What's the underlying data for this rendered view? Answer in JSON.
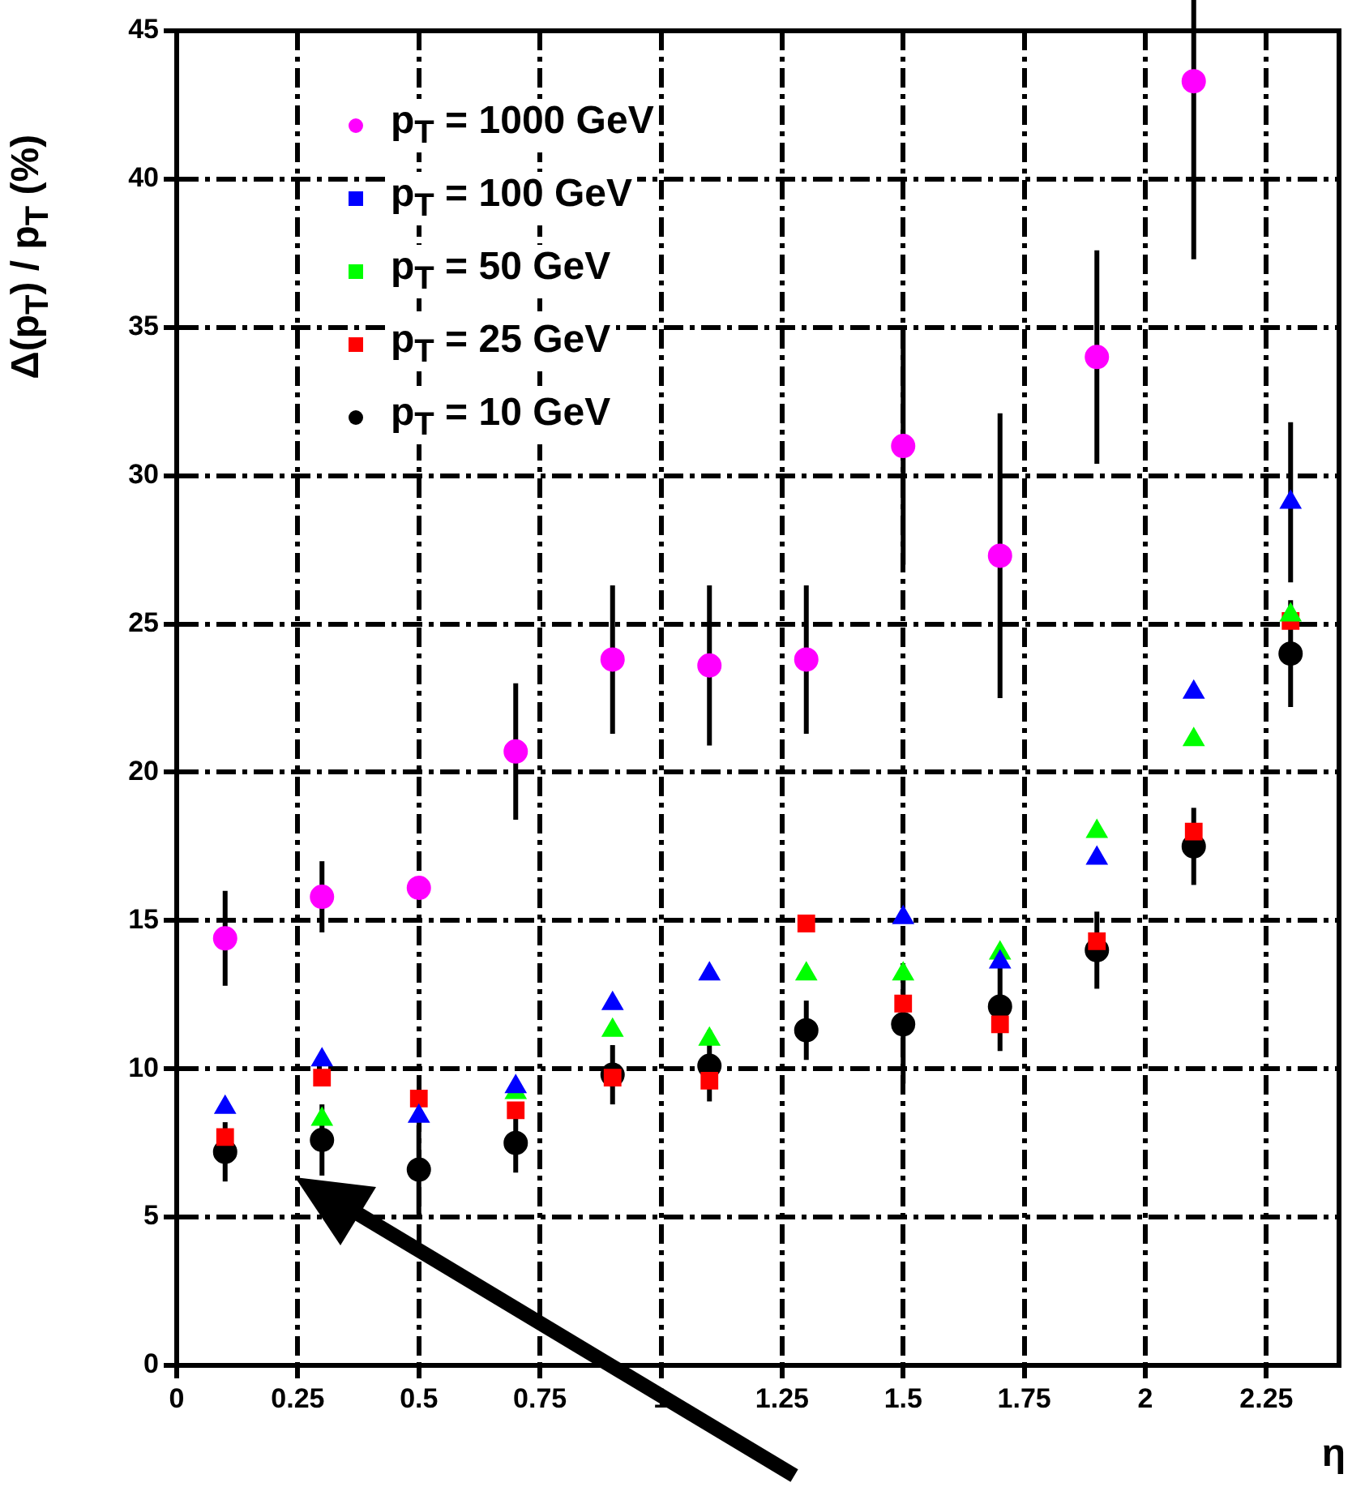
{
  "chart_data": {
    "type": "scatter",
    "xlabel": "η",
    "ylabel": "Δ(p$_{T}$) / p$_{T}$ (%)",
    "x": [
      0.1,
      0.3,
      0.5,
      0.7,
      0.9,
      1.1,
      1.3,
      1.5,
      1.7,
      1.9,
      2.1,
      2.3
    ],
    "series": [
      {
        "name": "p$_{T}$ = 1000 GeV",
        "color": "#ff00ff",
        "marker": "circle",
        "values": [
          14.4,
          15.8,
          16.1,
          20.7,
          23.8,
          23.6,
          23.8,
          31.0,
          27.3,
          34.0,
          43.3,
          null
        ],
        "errors": [
          1.6,
          1.2,
          0.3,
          2.3,
          2.5,
          2.7,
          2.5,
          4.0,
          4.8,
          3.6,
          6.0,
          null
        ]
      },
      {
        "name": "p$_{T}$ = 100 GeV",
        "color": "#0000ff",
        "marker": "triangle",
        "values": [
          8.7,
          10.3,
          8.4,
          9.4,
          12.2,
          13.2,
          null,
          15.1,
          13.6,
          17.1,
          22.7,
          29.1
        ],
        "errors": [
          null,
          null,
          null,
          null,
          null,
          null,
          null,
          null,
          null,
          null,
          null,
          2.7
        ]
      },
      {
        "name": "p$_{T}$ = 50 GeV",
        "color": "#00ff00",
        "marker": "triangle",
        "values": [
          null,
          8.3,
          null,
          9.2,
          11.3,
          11.0,
          13.2,
          13.2,
          13.9,
          18.0,
          21.1,
          25.3
        ]
      },
      {
        "name": "p$_{T}$ = 25 GeV",
        "color": "#ff0000",
        "marker": "square",
        "values": [
          7.7,
          9.7,
          9.0,
          8.6,
          9.7,
          9.6,
          14.9,
          12.2,
          11.5,
          14.3,
          18.0,
          25.1
        ]
      },
      {
        "name": "p$_{T}$ = 10 GeV",
        "color": "#000000",
        "marker": "circle",
        "values": [
          7.2,
          7.6,
          6.6,
          7.5,
          9.8,
          10.1,
          11.3,
          11.5,
          12.1,
          14.0,
          17.5,
          24.0
        ],
        "errors": [
          1.0,
          1.2,
          1.5,
          1.0,
          1.0,
          1.2,
          1.0,
          2.0,
          1.5,
          1.3,
          1.3,
          1.8
        ]
      }
    ],
    "xlim": [
      0,
      2.4
    ],
    "xticks": [
      0,
      0.25,
      0.5,
      0.75,
      1,
      1.25,
      1.5,
      1.75,
      2,
      2.25
    ],
    "ylim": [
      0,
      45
    ],
    "yticks": [
      0,
      5,
      10,
      15,
      20,
      25,
      30,
      35,
      40,
      45
    ],
    "grid": true,
    "legend": "top left"
  }
}
